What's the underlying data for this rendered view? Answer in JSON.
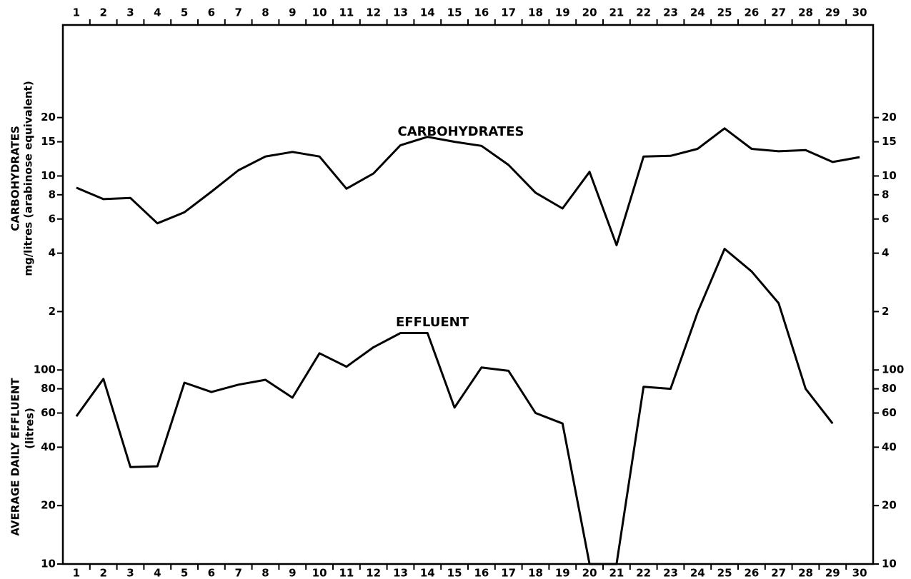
{
  "chart_data": [
    {
      "type": "line",
      "log": true,
      "y_label": [
        "CARBOHYDRATES",
        "mg/litres (arabinose equivalent)"
      ],
      "categories": [
        "1",
        "2",
        "3",
        "4",
        "5",
        "6",
        "7",
        "8",
        "9",
        "10",
        "11",
        "12",
        "13",
        "14",
        "15",
        "16",
        "17",
        "18",
        "19",
        "20",
        "21",
        "22",
        "23",
        "24",
        "25",
        "26",
        "27",
        "28",
        "29",
        "30"
      ],
      "series": [
        {
          "name": "CARBOHYDRATES",
          "color": "#000000",
          "values": [
            8.7,
            7.6,
            7.7,
            5.7,
            6.5,
            8.3,
            10.7,
            12.6,
            13.3,
            12.6,
            8.6,
            10.3,
            14.4,
            15.9,
            15,
            14.3,
            11.4,
            8.2,
            6.8,
            10.5,
            4.4,
            12.6,
            12.7,
            13.8,
            17.6,
            13.8,
            13.4,
            13.6,
            11.8,
            12.5
          ]
        }
      ],
      "ylim": [
        0.1,
        60
      ],
      "yticks": [
        2,
        4,
        6,
        8,
        10,
        15,
        20
      ]
    },
    {
      "type": "line",
      "log": true,
      "y_label": [
        "AVERAGE DAILY EFFLUENT",
        "(litres)"
      ],
      "series": [
        {
          "name": "EFFLUENT",
          "color": "#000000",
          "values": [
            57.7,
            90,
            31.6,
            31.9,
            86,
            77,
            84,
            89,
            72,
            122,
            104,
            131,
            155,
            155,
            64,
            103,
            99,
            60,
            53,
            10,
            10,
            82,
            80,
            198,
            421,
            322,
            221,
            80,
            53,
            null
          ]
        }
      ],
      "ylim": [
        10,
        6000
      ],
      "yticks": [
        10,
        20,
        40,
        60,
        80,
        100
      ]
    }
  ]
}
